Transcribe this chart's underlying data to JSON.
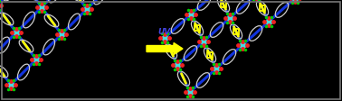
{
  "background_color": "#000000",
  "border_color": "#777777",
  "border_linewidth": 1.2,
  "arrow_color": "#ffff00",
  "arrow_text": "UV",
  "arrow_text_color": "#4444dd",
  "arrow_text_fontsize": 6.5,
  "arrow_text_fontweight": "bold",
  "arrow_text_fontstyle": "italic",
  "figwidth": 3.78,
  "figheight": 1.12,
  "dpi": 100,
  "white": "#cccccc",
  "cyan": "#44dddd",
  "red": "#ee2222",
  "blue": "#1133dd",
  "yellow": "#ffff00",
  "green": "#00cc00",
  "gray": "#888888"
}
